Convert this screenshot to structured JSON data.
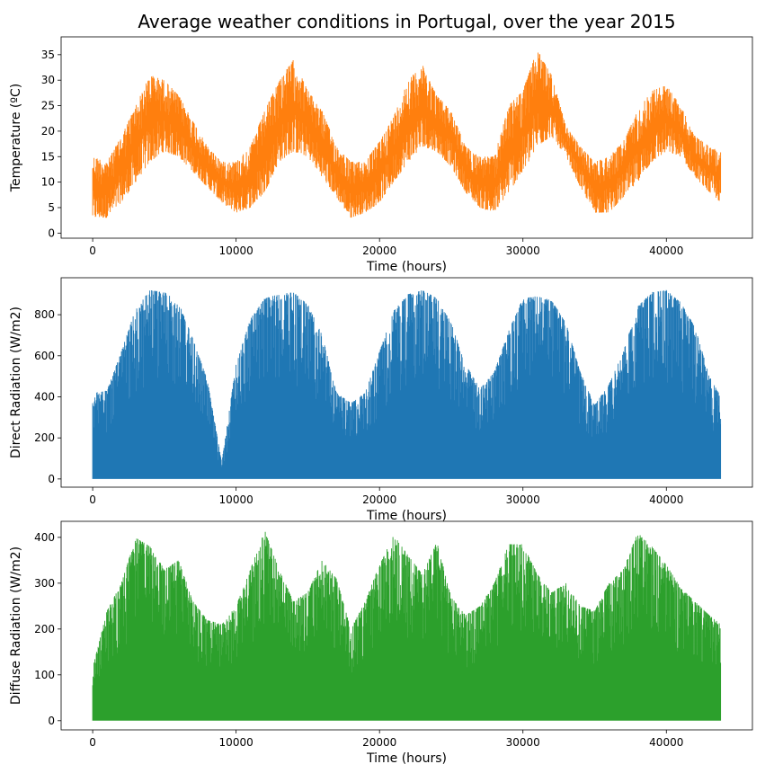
{
  "chart_data": [
    {
      "type": "line",
      "title": "Average weather conditions in Portugal, over the year 2015",
      "xlabel": "Time (hours)",
      "ylabel": "Temperature (ºC)",
      "color": "#ff7f0e",
      "xlim": [
        -2200,
        46000
      ],
      "ylim": [
        -1.0,
        38.5
      ],
      "xticks": [
        0,
        10000,
        20000,
        30000,
        40000
      ],
      "yticks": [
        0,
        5,
        10,
        15,
        20,
        25,
        30,
        35
      ],
      "series": [
        {
          "x": [
            0,
            1000,
            2000,
            3000,
            4000,
            5000,
            6000,
            7000,
            8000,
            9000,
            10000,
            11000,
            12000,
            13000,
            14000,
            15000,
            16000,
            17000,
            18000,
            19000,
            20000,
            21000,
            22000,
            23000,
            24000,
            25000,
            26000,
            27000,
            28000,
            29000,
            30000,
            31000,
            32000,
            33000,
            34000,
            35000,
            36000,
            37000,
            38000,
            39000,
            40000,
            41000,
            42000,
            43000,
            43800
          ],
          "upper": [
            15,
            14,
            19,
            25,
            31,
            30,
            27,
            22,
            17,
            14,
            14,
            17,
            24,
            30,
            34,
            28,
            24,
            17,
            14,
            14,
            18,
            23,
            30,
            33,
            27,
            24,
            17,
            15,
            15,
            25,
            28,
            36,
            31,
            21,
            17,
            14,
            15,
            18,
            24,
            28,
            29,
            25,
            19,
            17,
            16
          ],
          "lower": [
            3,
            3,
            6,
            10,
            14,
            16,
            15,
            12,
            9,
            6,
            4,
            5,
            8,
            14,
            16,
            15,
            11,
            7,
            3,
            4,
            6,
            10,
            14,
            17,
            16,
            13,
            8,
            5,
            4,
            8,
            12,
            17,
            19,
            15,
            9,
            4,
            4,
            7,
            10,
            14,
            16,
            15,
            11,
            8,
            6
          ]
        }
      ]
    },
    {
      "type": "area",
      "title": "",
      "xlabel": "Time (hours)",
      "ylabel": "Direct Radiation (W/m2)",
      "color": "#1f77b4",
      "xlim": [
        -2200,
        46000
      ],
      "ylim": [
        -40,
        980
      ],
      "xticks": [
        0,
        10000,
        20000,
        30000,
        40000
      ],
      "yticks": [
        0,
        200,
        400,
        600,
        800
      ],
      "series": [
        {
          "x": [
            0,
            1000,
            2000,
            3000,
            4000,
            5000,
            6000,
            7000,
            8000,
            9000,
            10000,
            11000,
            12000,
            13000,
            14000,
            15000,
            16000,
            17000,
            18000,
            19000,
            20000,
            21000,
            22000,
            23000,
            24000,
            25000,
            26000,
            27000,
            28000,
            29000,
            30000,
            31000,
            32000,
            33000,
            34000,
            35000,
            36000,
            37000,
            38000,
            39000,
            40000,
            41000,
            42000,
            43000,
            43800
          ],
          "upper": [
            420,
            430,
            620,
            830,
            920,
            910,
            860,
            680,
            480,
            80,
            560,
            780,
            880,
            900,
            910,
            850,
            700,
            420,
            370,
            420,
            620,
            820,
            900,
            920,
            880,
            760,
            560,
            440,
            520,
            720,
            880,
            890,
            870,
            760,
            520,
            360,
            460,
            620,
            840,
            910,
            920,
            860,
            740,
            500,
            400
          ],
          "lower": [
            0,
            0,
            0,
            0,
            0,
            0,
            0,
            0,
            0,
            0,
            0,
            0,
            0,
            0,
            0,
            0,
            0,
            0,
            0,
            0,
            0,
            0,
            0,
            0,
            0,
            0,
            0,
            0,
            0,
            0,
            0,
            0,
            0,
            0,
            0,
            0,
            0,
            0,
            0,
            0,
            0,
            0,
            0,
            0,
            0
          ]
        }
      ]
    },
    {
      "type": "area",
      "title": "",
      "xlabel": "Time (hours)",
      "ylabel": "Diffuse Radiation (W/m2)",
      "color": "#2ca02c",
      "xlim": [
        -2200,
        46000
      ],
      "ylim": [
        -20,
        435
      ],
      "xticks": [
        0,
        10000,
        20000,
        30000,
        40000
      ],
      "yticks": [
        0,
        100,
        200,
        300,
        400
      ],
      "series": [
        {
          "x": [
            0,
            1000,
            2000,
            3000,
            4000,
            5000,
            6000,
            7000,
            8000,
            9000,
            10000,
            11000,
            12000,
            13000,
            14000,
            15000,
            16000,
            17000,
            18000,
            19000,
            20000,
            21000,
            22000,
            23000,
            24000,
            25000,
            26000,
            27000,
            28000,
            29000,
            30000,
            31000,
            32000,
            33000,
            34000,
            35000,
            36000,
            37000,
            38000,
            39000,
            40000,
            41000,
            42000,
            43000,
            43800
          ],
          "upper": [
            115,
            240,
            300,
            400,
            380,
            330,
            350,
            260,
            220,
            210,
            250,
            330,
            415,
            330,
            260,
            280,
            350,
            310,
            200,
            260,
            340,
            405,
            360,
            320,
            390,
            270,
            230,
            250,
            300,
            385,
            385,
            320,
            280,
            300,
            250,
            240,
            300,
            330,
            410,
            380,
            340,
            290,
            260,
            230,
            210
          ],
          "lower": [
            0,
            0,
            0,
            0,
            0,
            0,
            0,
            0,
            0,
            0,
            0,
            0,
            0,
            0,
            0,
            0,
            0,
            0,
            0,
            0,
            0,
            0,
            0,
            0,
            0,
            0,
            0,
            0,
            0,
            0,
            0,
            0,
            0,
            0,
            0,
            0,
            0,
            0,
            0,
            0,
            0,
            0,
            0,
            0,
            0
          ]
        }
      ]
    }
  ]
}
